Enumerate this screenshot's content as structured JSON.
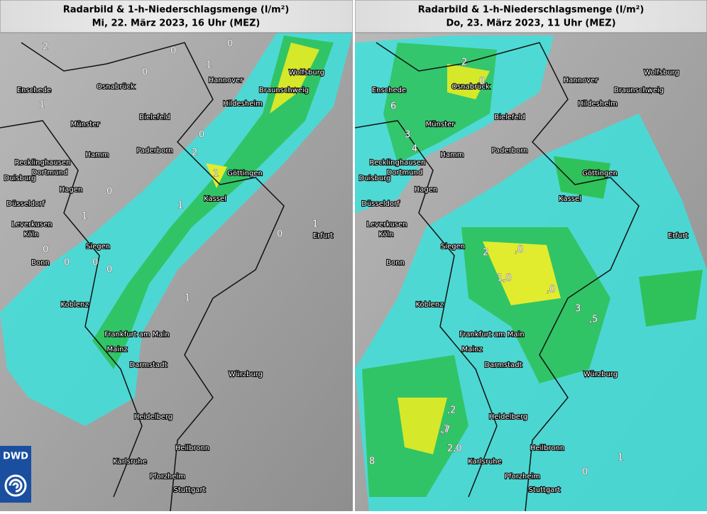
{
  "panels": [
    {
      "title": "Radarbild & 1-h-Niederschlagsmenge (l/m²)",
      "subtitle": "Mi, 22. März 2023, 16 Uhr (MEZ)",
      "amounts": [
        "2",
        "0",
        "0",
        "1",
        "0",
        "1",
        "0",
        "2",
        "1",
        "0",
        "1",
        "1",
        "0",
        "1",
        "0",
        "0",
        "1",
        "0",
        "0"
      ]
    },
    {
      "title": "Radarbild & 1-h-Niederschlagsmenge (l/m²)",
      "subtitle": "Do, 23. März 2023, 11 Uhr (MEZ)",
      "amounts": [
        "2",
        "0",
        "6",
        "3",
        "4",
        "2",
        ",0",
        "1,0",
        ",0",
        "3",
        ",5",
        ",7",
        ",2",
        ",7",
        "2,0",
        "8",
        "0",
        "1"
      ]
    }
  ],
  "cities": [
    "Enschede",
    "Osnabrück",
    "Hannover",
    "Wolfsburg",
    "Braunschweig",
    "Hildesheim",
    "Münster",
    "Bielefeld",
    "Hamm",
    "Paderborn",
    "Recklinghausen",
    "Dortmund",
    "Duisburg",
    "Göttingen",
    "Hagen",
    "Kassel",
    "Düsseldorf",
    "Leverkusen",
    "Köln",
    "Erfurt",
    "Siegen",
    "Bonn",
    "Koblenz",
    "Frankfurt am Main",
    "Mainz",
    "Darmstadt",
    "Würzburg",
    "Heidelberg",
    "Heilbronn",
    "Karlsruhe",
    "Pforzheim",
    "Stuttgart"
  ],
  "logo": "DWD"
}
